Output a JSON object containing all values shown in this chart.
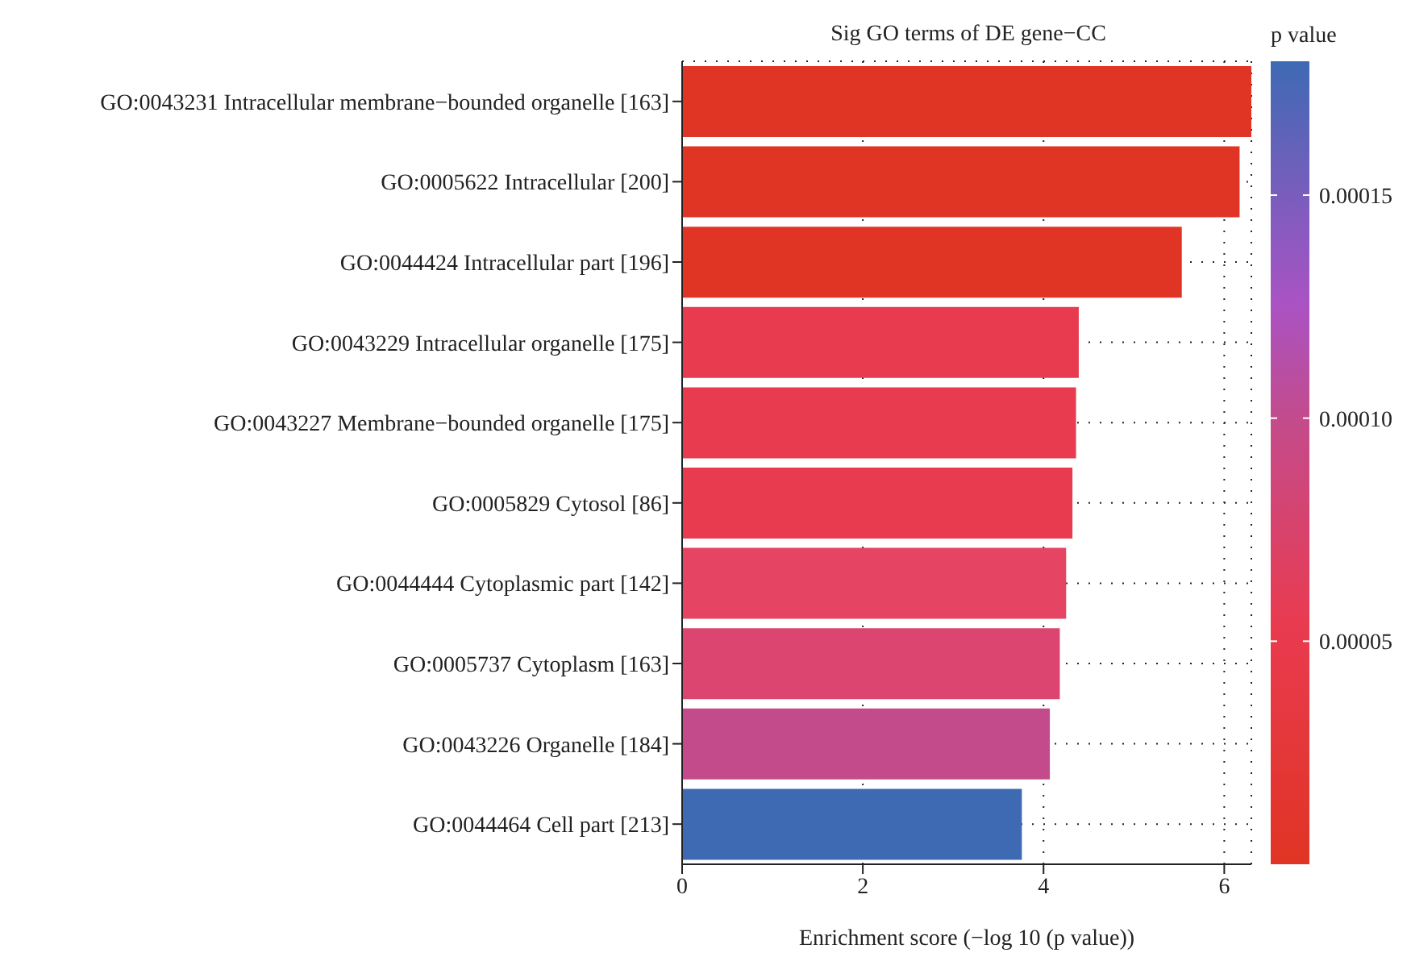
{
  "chart_data": {
    "type": "bar",
    "orientation": "horizontal",
    "title": "Sig GO terms of DE gene−CC",
    "xlabel": "Enrichment score (−log 10 (p value))",
    "clabel": "p value",
    "categories": [
      "GO:0043231 Intracellular membrane−bounded organelle [163]",
      "GO:0005622 Intracellular [200]",
      "GO:0044424 Intracellular part [196]",
      "GO:0043229 Intracellular organelle [175]",
      "GO:0043227 Membrane−bounded organelle [175]",
      "GO:0005829 Cytosol [86]",
      "GO:0044444 Cytoplasmic part [142]",
      "GO:0005737 Cytoplasm [163]",
      "GO:0043226 Organelle [184]",
      "GO:0044464 Cell part [213]"
    ],
    "values": [
      6.3,
      6.17,
      5.53,
      4.39,
      4.36,
      4.32,
      4.25,
      4.18,
      4.07,
      3.76
    ],
    "colors": [
      "#e03424",
      "#e03424",
      "#e03424",
      "#e93b50",
      "#e93b50",
      "#e93b50",
      "#e54462",
      "#dc4570",
      "#c44b8b",
      "#3e6ab3"
    ],
    "xlim": [
      0,
      6.3
    ],
    "xticks": [
      0,
      2,
      4,
      6
    ],
    "grid": true,
    "clim": [
      0,
      0.00018
    ],
    "cticks": [
      {
        "value": 5e-05,
        "label": "0.00005"
      },
      {
        "value": 0.0001,
        "label": "0.00010"
      },
      {
        "value": 0.00015,
        "label": "0.00015"
      }
    ]
  }
}
